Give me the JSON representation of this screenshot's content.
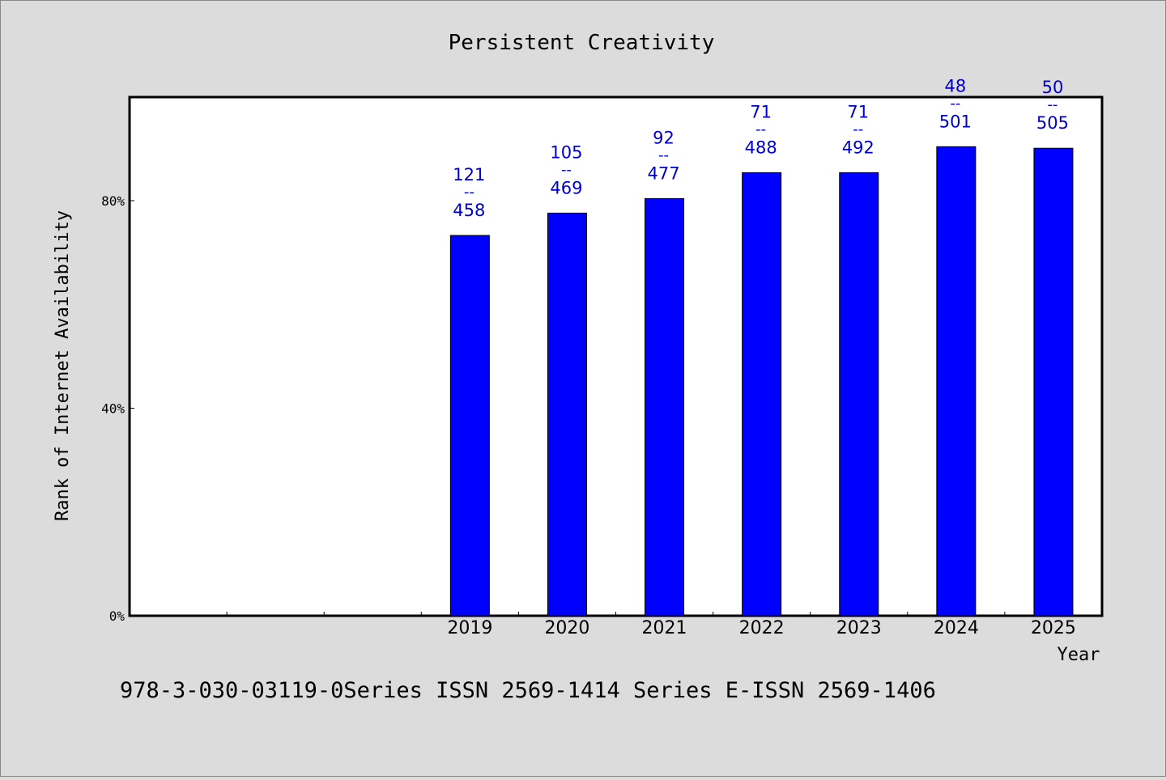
{
  "chart_data": {
    "type": "bar",
    "title": "Persistent Creativity",
    "xlabel": "Year",
    "ylabel": "Rank of Internet Availability",
    "categories": [
      "",
      "",
      "",
      "2019",
      "2020",
      "2021",
      "2022",
      "2023",
      "2024",
      "2025"
    ],
    "values": [
      null,
      null,
      null,
      73.3,
      77.6,
      80.4,
      85.4,
      85.4,
      90.4,
      90.1
    ],
    "data_labels": [
      null,
      null,
      null,
      {
        "top": "121",
        "bottom": "458"
      },
      {
        "top": "105",
        "bottom": "469"
      },
      {
        "top": "92",
        "bottom": "477"
      },
      {
        "top": "71",
        "bottom": "488"
      },
      {
        "top": "71",
        "bottom": "492"
      },
      {
        "top": "48",
        "bottom": "501"
      },
      {
        "top": "50",
        "bottom": "505"
      }
    ],
    "label_separator": "--",
    "y_ticks": [
      {
        "value": 0,
        "label": "0%"
      },
      {
        "value": 40,
        "label": "40%"
      },
      {
        "value": 80,
        "label": "80%"
      }
    ],
    "ylim": [
      0,
      100
    ],
    "grid": false,
    "legend": "none",
    "colors": {
      "bar": "#0000ff",
      "bar_edge": "#000000",
      "data_label": "#0000cc",
      "background": "#dcdcdc",
      "plot_background": "#ffffff"
    }
  },
  "footer_text": "978-3-030-03119-0Series ISSN 2569-1414 Series E-ISSN 2569-1406"
}
